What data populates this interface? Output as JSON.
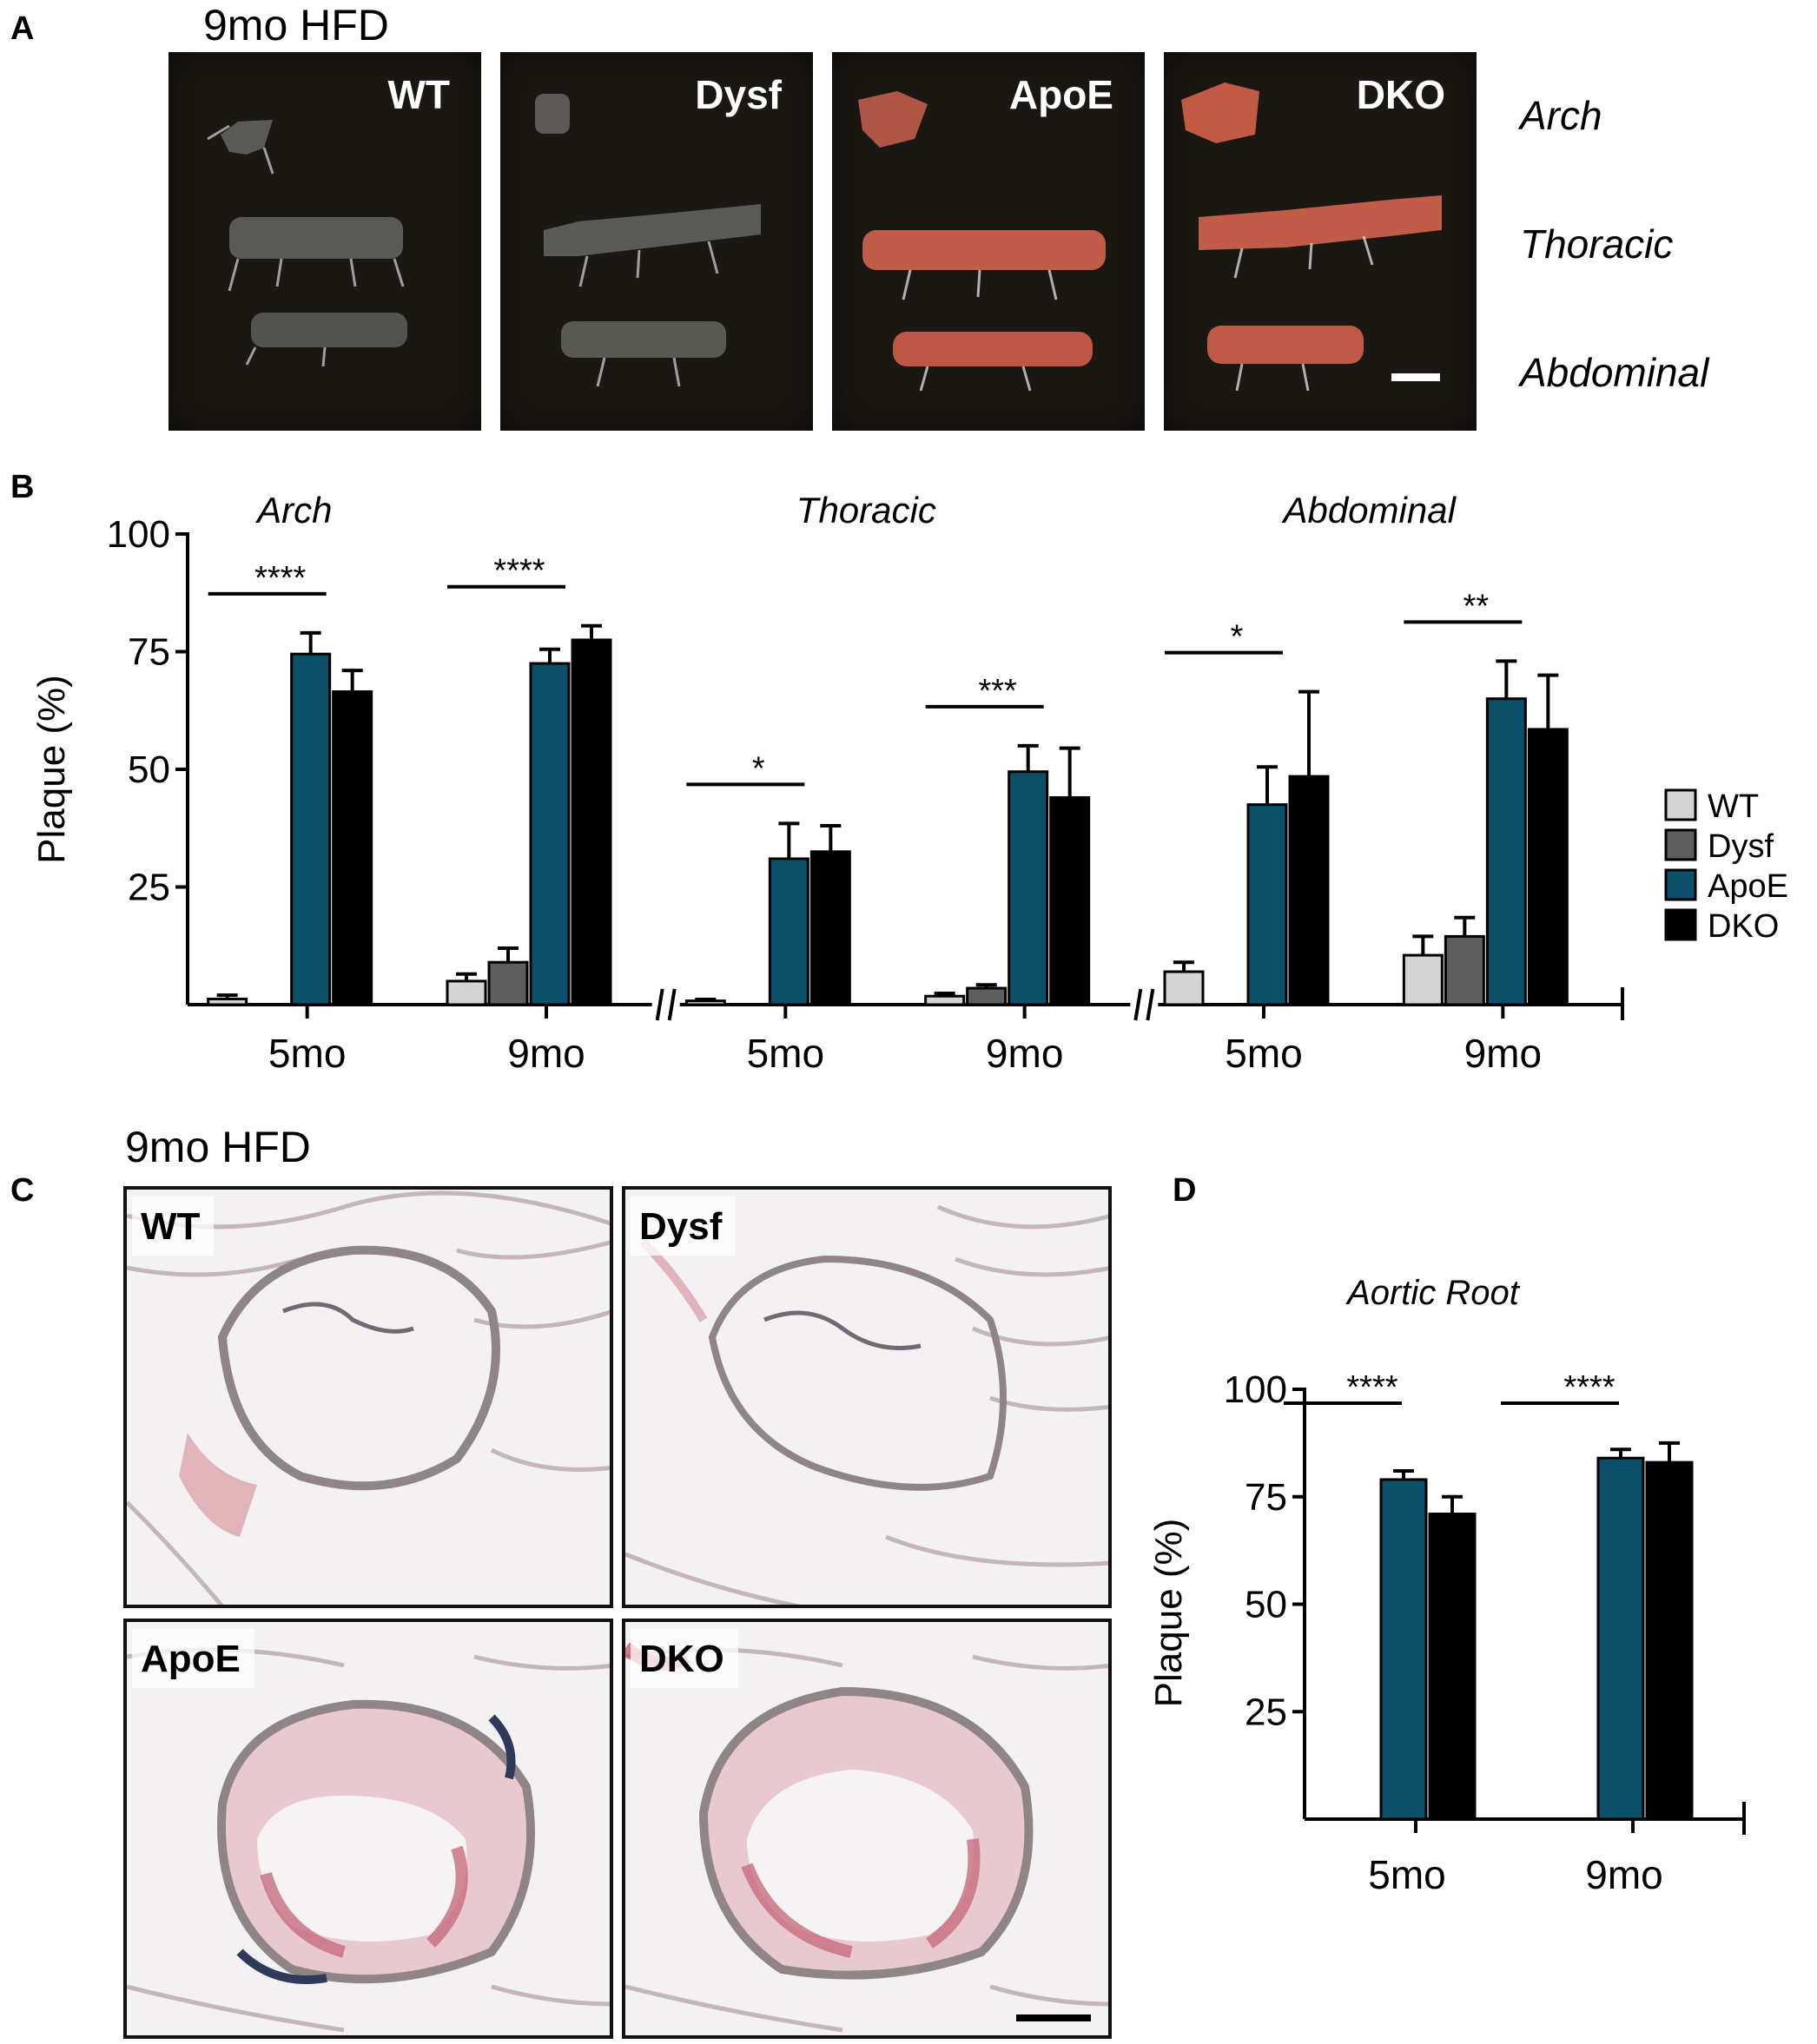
{
  "panels": {
    "a": {
      "letter": "A",
      "title": "9mo HFD",
      "photos": [
        "WT",
        "Dysf",
        "ApoE",
        "DKO"
      ],
      "regions": [
        "Arch",
        "Thoracic",
        "Abdominal"
      ]
    },
    "b": {
      "letter": "B"
    },
    "c": {
      "letter": "C",
      "title": "9mo HFD",
      "images": [
        "WT",
        "Dysf",
        "ApoE",
        "DKO"
      ]
    },
    "d": {
      "letter": "D"
    }
  },
  "colors": {
    "WT": "#d4d4d4",
    "Dysf": "#5e5e5e",
    "ApoE": "#0b5068",
    "DKO": "#000000"
  },
  "chart_data": [
    {
      "type": "bar",
      "ylabel": "Plaque (%)",
      "ylim": [
        0,
        100
      ],
      "yticks": [
        25,
        50,
        75,
        100
      ],
      "series_names": [
        "WT",
        "Dysf",
        "ApoE",
        "DKO"
      ],
      "legend": "right",
      "groups": [
        {
          "region": "Arch",
          "categories": [
            "5mo",
            "9mo"
          ],
          "values": [
            [
              1.2,
              0,
              74.5,
              66.5
            ],
            [
              5,
              9,
              72.5,
              77.5
            ]
          ],
          "errors": [
            [
              0.8,
              0,
              4.5,
              4.5
            ],
            [
              1.5,
              3,
              3,
              3
            ]
          ],
          "significance": [
            "****",
            "****"
          ]
        },
        {
          "region": "Thoracic",
          "categories": [
            "5mo",
            "9mo"
          ],
          "values": [
            [
              0.8,
              0,
              31,
              32.5
            ],
            [
              1.8,
              3.5,
              49.5,
              44
            ]
          ],
          "errors": [
            [
              0.3,
              0,
              7.5,
              5.5
            ],
            [
              0.6,
              0.7,
              5.5,
              10.5
            ]
          ],
          "significance": [
            "*",
            "***"
          ]
        },
        {
          "region": "Abdominal",
          "categories": [
            "5mo",
            "9mo"
          ],
          "values": [
            [
              7,
              0,
              42.5,
              48.5
            ],
            [
              10.5,
              14.5,
              65,
              58.5
            ]
          ],
          "errors": [
            [
              2,
              0,
              8,
              18
            ],
            [
              4,
              4,
              8,
              11.5
            ]
          ],
          "significance": [
            "*",
            "**"
          ]
        }
      ]
    },
    {
      "type": "bar",
      "title": "Aortic Root",
      "ylabel": "Plaque (%)",
      "ylim": [
        0,
        100
      ],
      "yticks": [
        25,
        50,
        75,
        100
      ],
      "categories": [
        "5mo",
        "9mo"
      ],
      "series_names": [
        "ApoE",
        "DKO"
      ],
      "values": [
        [
          79,
          71
        ],
        [
          84,
          83
        ]
      ],
      "errors": [
        [
          2,
          4
        ],
        [
          2,
          4.5
        ]
      ],
      "significance": [
        "****",
        "****"
      ]
    }
  ]
}
